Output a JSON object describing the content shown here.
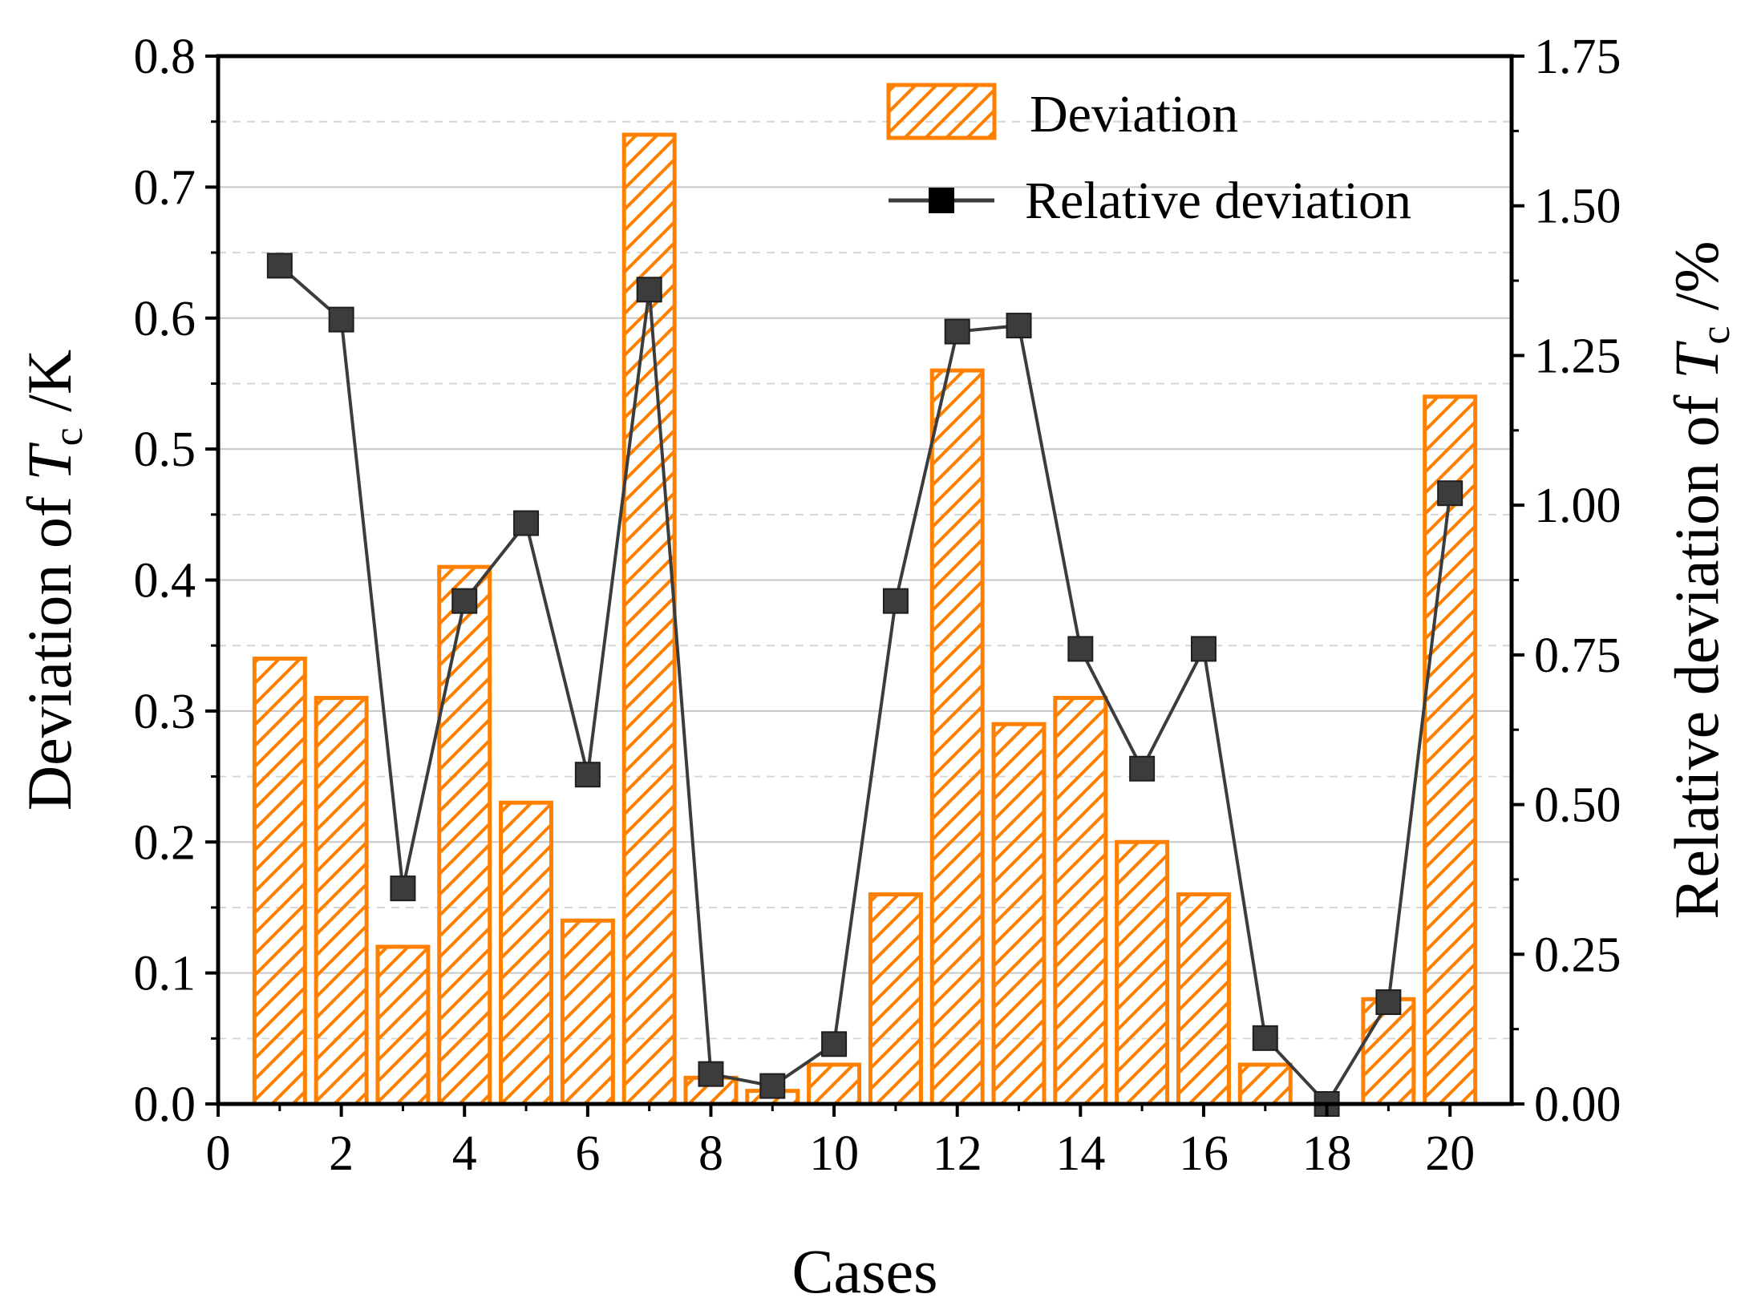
{
  "chart_data": {
    "type": "bar",
    "title": "",
    "xlabel": "Cases",
    "ylabel": {
      "prefix": "Deviation of ",
      "symbol": "T",
      "subscript": "c",
      "suffix": " /K"
    },
    "y2label": {
      "prefix": "Relative deviation of ",
      "symbol": "T",
      "subscript": "c",
      "suffix": " /%"
    },
    "xlim": [
      0,
      21
    ],
    "ylim": [
      0,
      0.8
    ],
    "y2lim": [
      0,
      1.75
    ],
    "x_ticks": [
      "0",
      "2",
      "4",
      "6",
      "8",
      "10",
      "12",
      "14",
      "16",
      "18",
      "20"
    ],
    "y_ticks": [
      "0.0",
      "0.1",
      "0.2",
      "0.3",
      "0.4",
      "0.5",
      "0.6",
      "0.7",
      "0.8"
    ],
    "y2_ticks": [
      "0.00",
      "0.25",
      "0.50",
      "0.75",
      "1.00",
      "1.25",
      "1.50",
      "1.75"
    ],
    "grid": true,
    "legend_position": "top-right",
    "x": [
      1,
      2,
      3,
      4,
      5,
      6,
      7,
      8,
      9,
      10,
      11,
      12,
      13,
      14,
      15,
      16,
      17,
      18,
      19,
      20
    ],
    "series": [
      {
        "name": "Deviation",
        "type": "bar",
        "axis": "left",
        "color": "#ff8000",
        "pattern": "diagonal-hatch",
        "values": [
          0.34,
          0.31,
          0.12,
          0.41,
          0.23,
          0.14,
          0.74,
          0.02,
          0.01,
          0.03,
          0.16,
          0.56,
          0.29,
          0.31,
          0.2,
          0.16,
          0.03,
          0.0,
          0.08,
          0.54
        ]
      },
      {
        "name": "Relative deviation",
        "type": "line",
        "marker": "square",
        "axis": "right",
        "color": "#3c3c3c",
        "values": [
          1.4,
          1.31,
          0.36,
          0.84,
          0.97,
          0.55,
          1.36,
          0.05,
          0.03,
          0.1,
          0.84,
          1.29,
          1.3,
          0.76,
          0.56,
          0.76,
          0.11,
          0.0,
          0.17,
          1.02
        ]
      }
    ]
  }
}
